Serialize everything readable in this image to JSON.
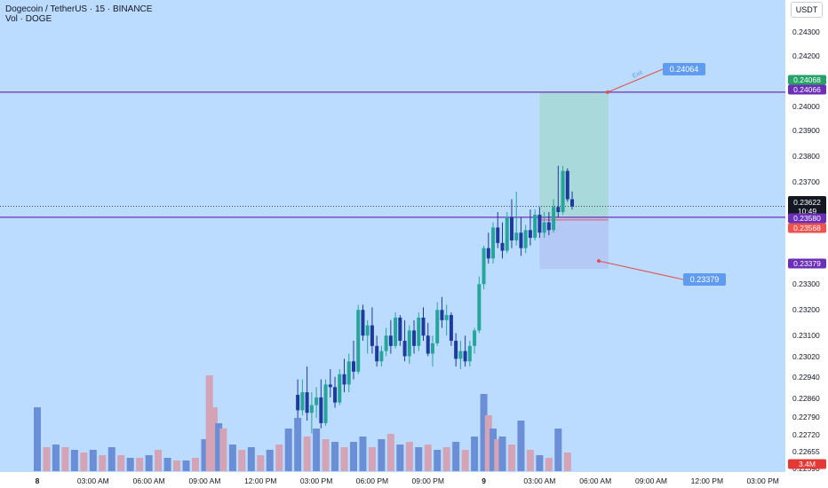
{
  "header": {
    "title": "Dogecoin / TetherUS · 15 · BINANCE",
    "volume_label": "Vol · DOGE"
  },
  "currency_button": "USDT",
  "colors": {
    "background": "#bbdcff",
    "up_candle": "#26a69a",
    "down_candle": "#1e3a9e",
    "up_volume": "#d4a3b6",
    "down_volume": "#6b8fd6",
    "level_line": "#6b2fb8",
    "target_zone": "#a6d8d3",
    "stop_zone": "#b3c5f5",
    "callout": "#5f9bf0",
    "current_price_tag": "#131722",
    "target_price_tag": "#26a269",
    "stop_price_tag": "#ef5350",
    "level_tag": "#6b2fb8",
    "volume_tag": "#e53935"
  },
  "chart_data": {
    "type": "candlestick",
    "symbol": "Dogecoin / TetherUS",
    "interval": "15",
    "exchange": "BINANCE",
    "y_axis": {
      "ylim": [
        0.2257,
        0.2437
      ],
      "ticks": [
        "0.24300",
        "0.24200",
        "0.24000",
        "0.23900",
        "0.23800",
        "0.23700",
        "0.23300",
        "0.23200",
        "0.23100",
        "0.23020",
        "0.22940",
        "0.22860",
        "0.22790",
        "0.22720",
        "0.22655",
        "0.22590"
      ]
    },
    "x_axis": {
      "ticks": [
        {
          "label": "8",
          "time": 0
        },
        {
          "label": "03:00 AM",
          "time": 3
        },
        {
          "label": "06:00 AM",
          "time": 6
        },
        {
          "label": "09:00 AM",
          "time": 9
        },
        {
          "label": "12:00 PM",
          "time": 12
        },
        {
          "label": "03:00 PM",
          "time": 15
        },
        {
          "label": "06:00 PM",
          "time": 18
        },
        {
          "label": "09:00 PM",
          "time": 21
        },
        {
          "label": "9",
          "time": 24
        },
        {
          "label": "03:00 AM",
          "time": 27
        },
        {
          "label": "06:00 AM",
          "time": 30
        },
        {
          "label": "09:00 AM",
          "time": 33
        },
        {
          "label": "12:00 PM",
          "time": 36
        },
        {
          "label": "03:00 PM",
          "time": 39
        }
      ]
    },
    "candles": [
      {
        "time": 14.0,
        "open": 0.2289,
        "high": 0.2295,
        "low": 0.228,
        "close": 0.2283
      },
      {
        "time": 14.25,
        "open": 0.2283,
        "high": 0.2295,
        "low": 0.2281,
        "close": 0.229
      },
      {
        "time": 14.5,
        "open": 0.229,
        "high": 0.23,
        "low": 0.2279,
        "close": 0.2282
      },
      {
        "time": 14.75,
        "open": 0.2282,
        "high": 0.229,
        "low": 0.2274,
        "close": 0.2285
      },
      {
        "time": 15.0,
        "open": 0.2285,
        "high": 0.2292,
        "low": 0.228,
        "close": 0.2288
      },
      {
        "time": 15.25,
        "open": 0.2288,
        "high": 0.2295,
        "low": 0.2276,
        "close": 0.2278
      },
      {
        "time": 15.5,
        "open": 0.2278,
        "high": 0.2295,
        "low": 0.2277,
        "close": 0.2293
      },
      {
        "time": 15.75,
        "open": 0.2293,
        "high": 0.2299,
        "low": 0.2288,
        "close": 0.2292
      },
      {
        "time": 16.0,
        "open": 0.2292,
        "high": 0.2296,
        "low": 0.2284,
        "close": 0.2286
      },
      {
        "time": 16.25,
        "open": 0.2286,
        "high": 0.2299,
        "low": 0.2285,
        "close": 0.2297
      },
      {
        "time": 16.5,
        "open": 0.2297,
        "high": 0.2303,
        "low": 0.229,
        "close": 0.2293
      },
      {
        "time": 16.75,
        "open": 0.2293,
        "high": 0.2305,
        "low": 0.229,
        "close": 0.2302
      },
      {
        "time": 17.0,
        "open": 0.2302,
        "high": 0.231,
        "low": 0.2295,
        "close": 0.2298
      },
      {
        "time": 17.25,
        "open": 0.2298,
        "high": 0.2324,
        "low": 0.2297,
        "close": 0.2322
      },
      {
        "time": 17.5,
        "open": 0.2322,
        "high": 0.2324,
        "low": 0.231,
        "close": 0.2312
      },
      {
        "time": 17.75,
        "open": 0.2312,
        "high": 0.2318,
        "low": 0.2305,
        "close": 0.2316
      },
      {
        "time": 18.0,
        "open": 0.2316,
        "high": 0.2323,
        "low": 0.2305,
        "close": 0.2308
      },
      {
        "time": 18.25,
        "open": 0.2308,
        "high": 0.2312,
        "low": 0.23,
        "close": 0.2302
      },
      {
        "time": 18.5,
        "open": 0.2302,
        "high": 0.2308,
        "low": 0.23,
        "close": 0.2306
      },
      {
        "time": 18.75,
        "open": 0.2306,
        "high": 0.2315,
        "low": 0.2304,
        "close": 0.2312
      },
      {
        "time": 19.0,
        "open": 0.2312,
        "high": 0.2318,
        "low": 0.2305,
        "close": 0.2308
      },
      {
        "time": 19.25,
        "open": 0.2308,
        "high": 0.2321,
        "low": 0.2307,
        "close": 0.2319
      },
      {
        "time": 19.5,
        "open": 0.2319,
        "high": 0.232,
        "low": 0.2308,
        "close": 0.231
      },
      {
        "time": 19.75,
        "open": 0.231,
        "high": 0.2318,
        "low": 0.2302,
        "close": 0.2304
      },
      {
        "time": 20.0,
        "open": 0.2304,
        "high": 0.2316,
        "low": 0.2301,
        "close": 0.2314
      },
      {
        "time": 20.25,
        "open": 0.2314,
        "high": 0.2318,
        "low": 0.2305,
        "close": 0.2308
      },
      {
        "time": 20.5,
        "open": 0.2308,
        "high": 0.2321,
        "low": 0.2306,
        "close": 0.2319
      },
      {
        "time": 20.75,
        "open": 0.2319,
        "high": 0.2323,
        "low": 0.231,
        "close": 0.2312
      },
      {
        "time": 21.0,
        "open": 0.2312,
        "high": 0.2317,
        "low": 0.2304,
        "close": 0.2305
      },
      {
        "time": 21.25,
        "open": 0.2305,
        "high": 0.2312,
        "low": 0.23,
        "close": 0.2309
      },
      {
        "time": 21.5,
        "open": 0.2309,
        "high": 0.2325,
        "low": 0.2308,
        "close": 0.2322
      },
      {
        "time": 21.75,
        "open": 0.2322,
        "high": 0.2327,
        "low": 0.2315,
        "close": 0.2318
      },
      {
        "time": 22.0,
        "open": 0.2318,
        "high": 0.2324,
        "low": 0.2312,
        "close": 0.232
      },
      {
        "time": 22.25,
        "open": 0.232,
        "high": 0.2321,
        "low": 0.2308,
        "close": 0.231
      },
      {
        "time": 22.5,
        "open": 0.231,
        "high": 0.2313,
        "low": 0.23,
        "close": 0.2303
      },
      {
        "time": 22.75,
        "open": 0.2303,
        "high": 0.231,
        "low": 0.2299,
        "close": 0.2306
      },
      {
        "time": 23.0,
        "open": 0.2306,
        "high": 0.2312,
        "low": 0.23,
        "close": 0.2302
      },
      {
        "time": 23.25,
        "open": 0.2302,
        "high": 0.231,
        "low": 0.23,
        "close": 0.2308
      },
      {
        "time": 23.5,
        "open": 0.2308,
        "high": 0.2315,
        "low": 0.2305,
        "close": 0.2314
      },
      {
        "time": 23.75,
        "open": 0.2314,
        "high": 0.2335,
        "low": 0.2313,
        "close": 0.2332
      },
      {
        "time": 24.0,
        "open": 0.2332,
        "high": 0.2347,
        "low": 0.233,
        "close": 0.2346
      },
      {
        "time": 24.25,
        "open": 0.2346,
        "high": 0.2352,
        "low": 0.234,
        "close": 0.2342
      },
      {
        "time": 24.5,
        "open": 0.2342,
        "high": 0.2356,
        "low": 0.234,
        "close": 0.2354
      },
      {
        "time": 24.75,
        "open": 0.2354,
        "high": 0.236,
        "low": 0.2346,
        "close": 0.2348
      },
      {
        "time": 25.0,
        "open": 0.2348,
        "high": 0.2356,
        "low": 0.2342,
        "close": 0.2345
      },
      {
        "time": 25.25,
        "open": 0.2345,
        "high": 0.236,
        "low": 0.2344,
        "close": 0.2358
      },
      {
        "time": 25.5,
        "open": 0.2358,
        "high": 0.2365,
        "low": 0.2346,
        "close": 0.2349
      },
      {
        "time": 25.75,
        "open": 0.2349,
        "high": 0.2368,
        "low": 0.2347,
        "close": 0.2352
      },
      {
        "time": 26.0,
        "open": 0.2352,
        "high": 0.2358,
        "low": 0.2343,
        "close": 0.2346
      },
      {
        "time": 26.25,
        "open": 0.2346,
        "high": 0.2355,
        "low": 0.2344,
        "close": 0.2353
      },
      {
        "time": 26.5,
        "open": 0.2353,
        "high": 0.2361,
        "low": 0.2347,
        "close": 0.235
      },
      {
        "time": 26.75,
        "open": 0.235,
        "high": 0.2361,
        "low": 0.2349,
        "close": 0.2359
      },
      {
        "time": 27.0,
        "open": 0.2359,
        "high": 0.2362,
        "low": 0.235,
        "close": 0.2352
      },
      {
        "time": 27.25,
        "open": 0.2352,
        "high": 0.236,
        "low": 0.235,
        "close": 0.2356
      },
      {
        "time": 27.5,
        "open": 0.2356,
        "high": 0.236,
        "low": 0.2351,
        "close": 0.2353
      },
      {
        "time": 27.75,
        "open": 0.2353,
        "high": 0.2365,
        "low": 0.2352,
        "close": 0.2362
      },
      {
        "time": 28.0,
        "open": 0.2362,
        "high": 0.2378,
        "low": 0.2358,
        "close": 0.236
      },
      {
        "time": 28.25,
        "open": 0.236,
        "high": 0.2378,
        "low": 0.2359,
        "close": 0.2376
      },
      {
        "time": 28.5,
        "open": 0.2376,
        "high": 0.2377,
        "low": 0.2364,
        "close": 0.2365
      },
      {
        "time": 28.75,
        "open": 0.2365,
        "high": 0.2368,
        "low": 0.2361,
        "close": 0.23622
      }
    ],
    "volume": [
      {
        "time": 0.0,
        "value": 2.4,
        "dir": "down"
      },
      {
        "time": 0.5,
        "value": 0.9,
        "dir": "up"
      },
      {
        "time": 1.0,
        "value": 1.0,
        "dir": "down"
      },
      {
        "time": 1.5,
        "value": 0.9,
        "dir": "up"
      },
      {
        "time": 2.0,
        "value": 0.8,
        "dir": "down"
      },
      {
        "time": 2.5,
        "value": 0.7,
        "dir": "up"
      },
      {
        "time": 3.0,
        "value": 0.8,
        "dir": "down"
      },
      {
        "time": 3.5,
        "value": 0.6,
        "dir": "up"
      },
      {
        "time": 4.0,
        "value": 0.9,
        "dir": "down"
      },
      {
        "time": 4.5,
        "value": 0.6,
        "dir": "up"
      },
      {
        "time": 5.0,
        "value": 0.5,
        "dir": "down"
      },
      {
        "time": 5.5,
        "value": 0.5,
        "dir": "up"
      },
      {
        "time": 6.0,
        "value": 0.6,
        "dir": "down"
      },
      {
        "time": 6.5,
        "value": 0.8,
        "dir": "up"
      },
      {
        "time": 7.0,
        "value": 0.5,
        "dir": "down"
      },
      {
        "time": 7.5,
        "value": 0.4,
        "dir": "up"
      },
      {
        "time": 8.0,
        "value": 0.4,
        "dir": "down"
      },
      {
        "time": 8.5,
        "value": 0.5,
        "dir": "up"
      },
      {
        "time": 9.0,
        "value": 1.2,
        "dir": "down"
      },
      {
        "time": 9.25,
        "value": 3.6,
        "dir": "up"
      },
      {
        "time": 9.5,
        "value": 2.4,
        "dir": "up"
      },
      {
        "time": 9.75,
        "value": 1.8,
        "dir": "down"
      },
      {
        "time": 10.0,
        "value": 1.6,
        "dir": "up"
      },
      {
        "time": 10.5,
        "value": 1.0,
        "dir": "down"
      },
      {
        "time": 11.0,
        "value": 0.8,
        "dir": "up"
      },
      {
        "time": 11.5,
        "value": 0.9,
        "dir": "down"
      },
      {
        "time": 12.0,
        "value": 0.6,
        "dir": "up"
      },
      {
        "time": 12.5,
        "value": 0.8,
        "dir": "down"
      },
      {
        "time": 13.0,
        "value": 1.0,
        "dir": "up"
      },
      {
        "time": 13.5,
        "value": 1.6,
        "dir": "down"
      },
      {
        "time": 14.0,
        "value": 2.0,
        "dir": "down"
      },
      {
        "time": 14.5,
        "value": 1.3,
        "dir": "up"
      },
      {
        "time": 15.0,
        "value": 1.6,
        "dir": "down"
      },
      {
        "time": 15.5,
        "value": 1.2,
        "dir": "up"
      },
      {
        "time": 16.0,
        "value": 1.1,
        "dir": "down"
      },
      {
        "time": 16.5,
        "value": 0.9,
        "dir": "up"
      },
      {
        "time": 17.0,
        "value": 1.1,
        "dir": "down"
      },
      {
        "time": 17.5,
        "value": 1.3,
        "dir": "down"
      },
      {
        "time": 18.0,
        "value": 0.9,
        "dir": "up"
      },
      {
        "time": 18.5,
        "value": 1.2,
        "dir": "down"
      },
      {
        "time": 19.0,
        "value": 1.4,
        "dir": "up"
      },
      {
        "time": 19.5,
        "value": 1.0,
        "dir": "down"
      },
      {
        "time": 20.0,
        "value": 1.1,
        "dir": "up"
      },
      {
        "time": 20.5,
        "value": 0.9,
        "dir": "down"
      },
      {
        "time": 21.0,
        "value": 1.0,
        "dir": "up"
      },
      {
        "time": 21.5,
        "value": 0.8,
        "dir": "down"
      },
      {
        "time": 22.0,
        "value": 0.9,
        "dir": "up"
      },
      {
        "time": 22.5,
        "value": 1.1,
        "dir": "down"
      },
      {
        "time": 23.0,
        "value": 0.8,
        "dir": "up"
      },
      {
        "time": 23.5,
        "value": 1.3,
        "dir": "down"
      },
      {
        "time": 24.0,
        "value": 2.9,
        "dir": "down"
      },
      {
        "time": 24.25,
        "value": 2.1,
        "dir": "up"
      },
      {
        "time": 24.5,
        "value": 1.6,
        "dir": "down"
      },
      {
        "time": 24.75,
        "value": 1.2,
        "dir": "up"
      },
      {
        "time": 25.0,
        "value": 1.3,
        "dir": "down"
      },
      {
        "time": 25.5,
        "value": 1.0,
        "dir": "up"
      },
      {
        "time": 26.0,
        "value": 1.9,
        "dir": "down"
      },
      {
        "time": 26.5,
        "value": 0.8,
        "dir": "up"
      },
      {
        "time": 27.0,
        "value": 0.6,
        "dir": "down"
      },
      {
        "time": 27.5,
        "value": 0.5,
        "dir": "up"
      },
      {
        "time": 28.0,
        "value": 1.6,
        "dir": "down"
      },
      {
        "time": 28.5,
        "value": 0.7,
        "dir": "up"
      }
    ],
    "horizontal_levels": [
      {
        "price": 0.24066,
        "label": "0.24066"
      },
      {
        "price": 0.2358,
        "label": "0.23580"
      }
    ],
    "position": {
      "type": "long",
      "entry": 0.2358,
      "target": 0.24068,
      "stop": 0.23379,
      "start_time": 27.0,
      "end_time": 30.7
    },
    "target_callout": {
      "text": "0.24064",
      "note": "Exit"
    },
    "stop_callout": {
      "text": "0.23379"
    },
    "price_tags": {
      "target": "0.24068",
      "level": "0.24066",
      "current_price": "0.23622",
      "countdown": "10:49",
      "entry": "0.23580",
      "stop_level": "0.23568",
      "stop": "0.23379",
      "volume": "3.4M"
    }
  }
}
